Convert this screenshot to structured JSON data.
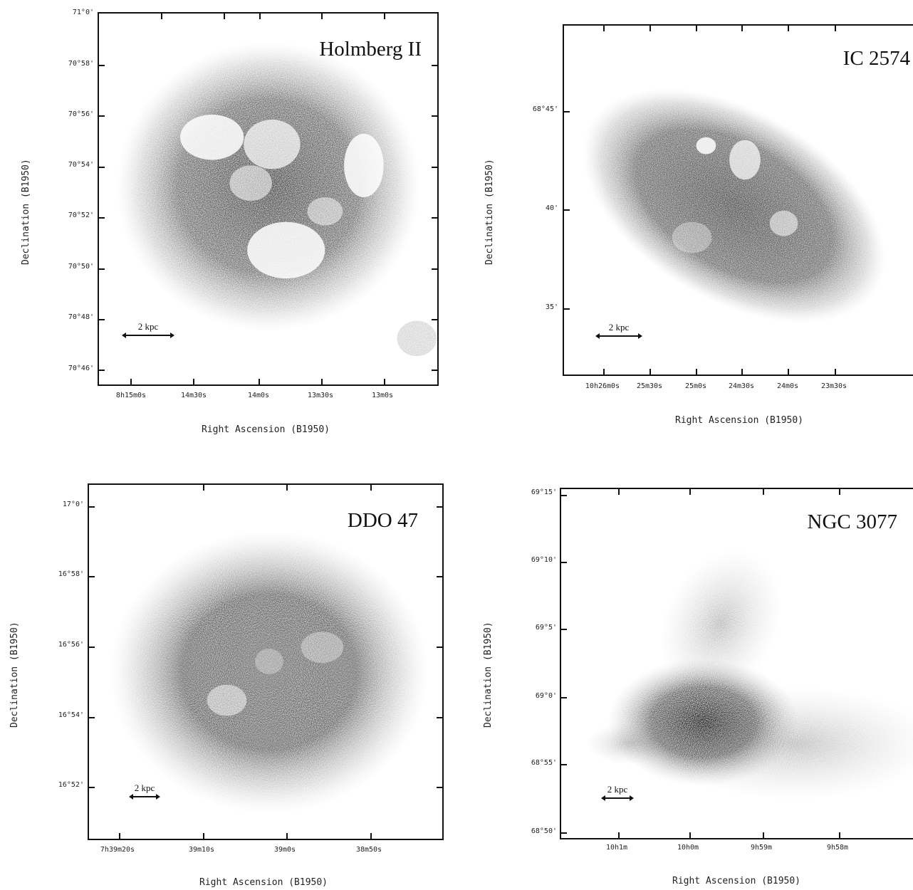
{
  "panels": [
    {
      "key": "holmberg",
      "name": "Holmberg II",
      "ylabel": "Declination (B1950)",
      "xlabel": "Right Ascension (B1950)",
      "yticks": [
        "71°0'",
        "70°58'",
        "70°56'",
        "70°54'",
        "70°52'",
        "70°50'",
        "70°48'",
        "70°46'"
      ],
      "xticks": [
        "8h15m0s",
        "14m30s",
        "14m0s",
        "13m30s",
        "13m0s"
      ],
      "scale": "2 kpc"
    },
    {
      "key": "ic2574",
      "name": "IC 2574",
      "ylabel": "Declination (B1950)",
      "xlabel": "Right Ascension (B1950)",
      "yticks": [
        "68°45'",
        "40'",
        "35'"
      ],
      "xticks": [
        "10h26m0s",
        "25m30s",
        "25m0s",
        "24m30s",
        "24m0s",
        "23m30s"
      ],
      "scale": "2 kpc"
    },
    {
      "key": "ddo47",
      "name": "DDO 47",
      "ylabel": "Declination (B1950)",
      "xlabel": "Right Ascension (B1950)",
      "yticks": [
        "17°0'",
        "16°58'",
        "16°56'",
        "16°54'",
        "16°52'"
      ],
      "xticks": [
        "7h39m20s",
        "39m10s",
        "39m0s",
        "38m50s"
      ],
      "scale": "2 kpc"
    },
    {
      "key": "ngc3077",
      "name": "NGC 3077",
      "ylabel": "Declination (B1950)",
      "xlabel": "Right Ascension (B1950)",
      "yticks": [
        "69°15'",
        "69°10'",
        "69°5'",
        "69°0'",
        "68°55'",
        "68°50'"
      ],
      "xticks": [
        "10h1m",
        "10h0m",
        "9h59m",
        "9h58m"
      ],
      "scale": "2 kpc"
    }
  ]
}
